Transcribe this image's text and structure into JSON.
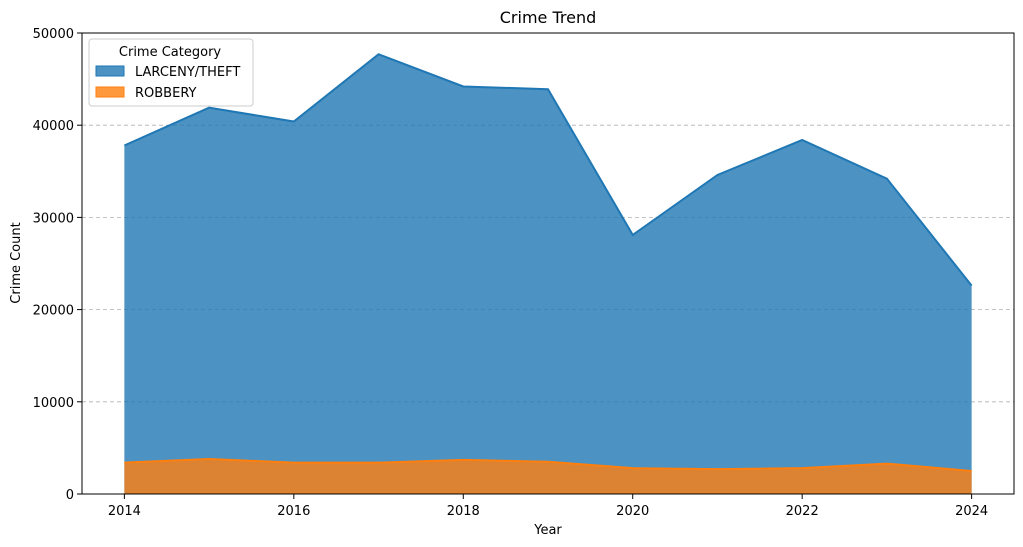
{
  "chart_data": {
    "type": "area",
    "stacked": false,
    "title": "Crime Trend",
    "xlabel": "Year",
    "ylabel": "Crime Count",
    "x": [
      2014,
      2015,
      2016,
      2017,
      2018,
      2019,
      2020,
      2021,
      2022,
      2023,
      2024
    ],
    "xticks": [
      2014,
      2016,
      2018,
      2020,
      2022,
      2024
    ],
    "yticks": [
      0,
      10000,
      20000,
      30000,
      40000,
      50000
    ],
    "xlim": [
      2013.5,
      2024.5
    ],
    "ylim": [
      0,
      50000
    ],
    "grid": "horizontal dashed",
    "legend": {
      "title": "Crime Category",
      "placement": "top-left"
    },
    "series": [
      {
        "name": "LARCENY/THEFT",
        "color": "#1f77b4",
        "values": [
          37800,
          41900,
          40400,
          47700,
          44200,
          43900,
          28100,
          34600,
          38400,
          34200,
          22600
        ]
      },
      {
        "name": "ROBBERY",
        "color": "#ff7f0e",
        "values": [
          3400,
          3800,
          3400,
          3400,
          3700,
          3500,
          2800,
          2700,
          2800,
          3300,
          2500
        ]
      }
    ]
  }
}
